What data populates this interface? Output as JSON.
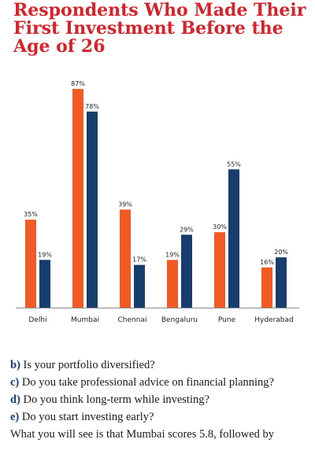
{
  "title_lines": [
    "Respondents Who Made Their",
    "First Investment Before the",
    "Age of 26"
  ],
  "colors": {
    "title": "#d4232a",
    "series_a": "#f15a24",
    "series_b": "#163d6b",
    "question_letter": "#1a3d7a"
  },
  "chart_data": {
    "type": "bar",
    "title": "Respondents Who Made Their First Investment Before the Age of 26",
    "xlabel": "",
    "ylabel": "",
    "ylim": [
      0,
      100
    ],
    "grid": false,
    "legend": "none",
    "categories": [
      "Delhi",
      "Mumbai",
      "Chennai",
      "Bengaluru",
      "Pune",
      "Hyderabad"
    ],
    "series": [
      {
        "values": [
          35,
          87,
          39,
          19,
          30,
          16
        ],
        "labels": [
          "35%",
          "87%",
          "39%",
          "19%",
          "30%",
          "16%"
        ]
      },
      {
        "values": [
          19,
          78,
          17,
          29,
          55,
          20
        ],
        "labels": [
          "19%",
          "78%",
          "17%",
          "29%",
          "55%",
          "20%"
        ]
      }
    ]
  },
  "questions": [
    {
      "letter": "b)",
      "text": "Is your portfolio diversified?"
    },
    {
      "letter": "c)",
      "text": "Do you take professional advice on financial planning?"
    },
    {
      "letter": "d)",
      "text": "Do you think long-term while investing?"
    },
    {
      "letter": "e)",
      "text": "Do you start investing early?"
    }
  ],
  "body_text": "What you will see is that Mumbai scores 5.8, followed by"
}
